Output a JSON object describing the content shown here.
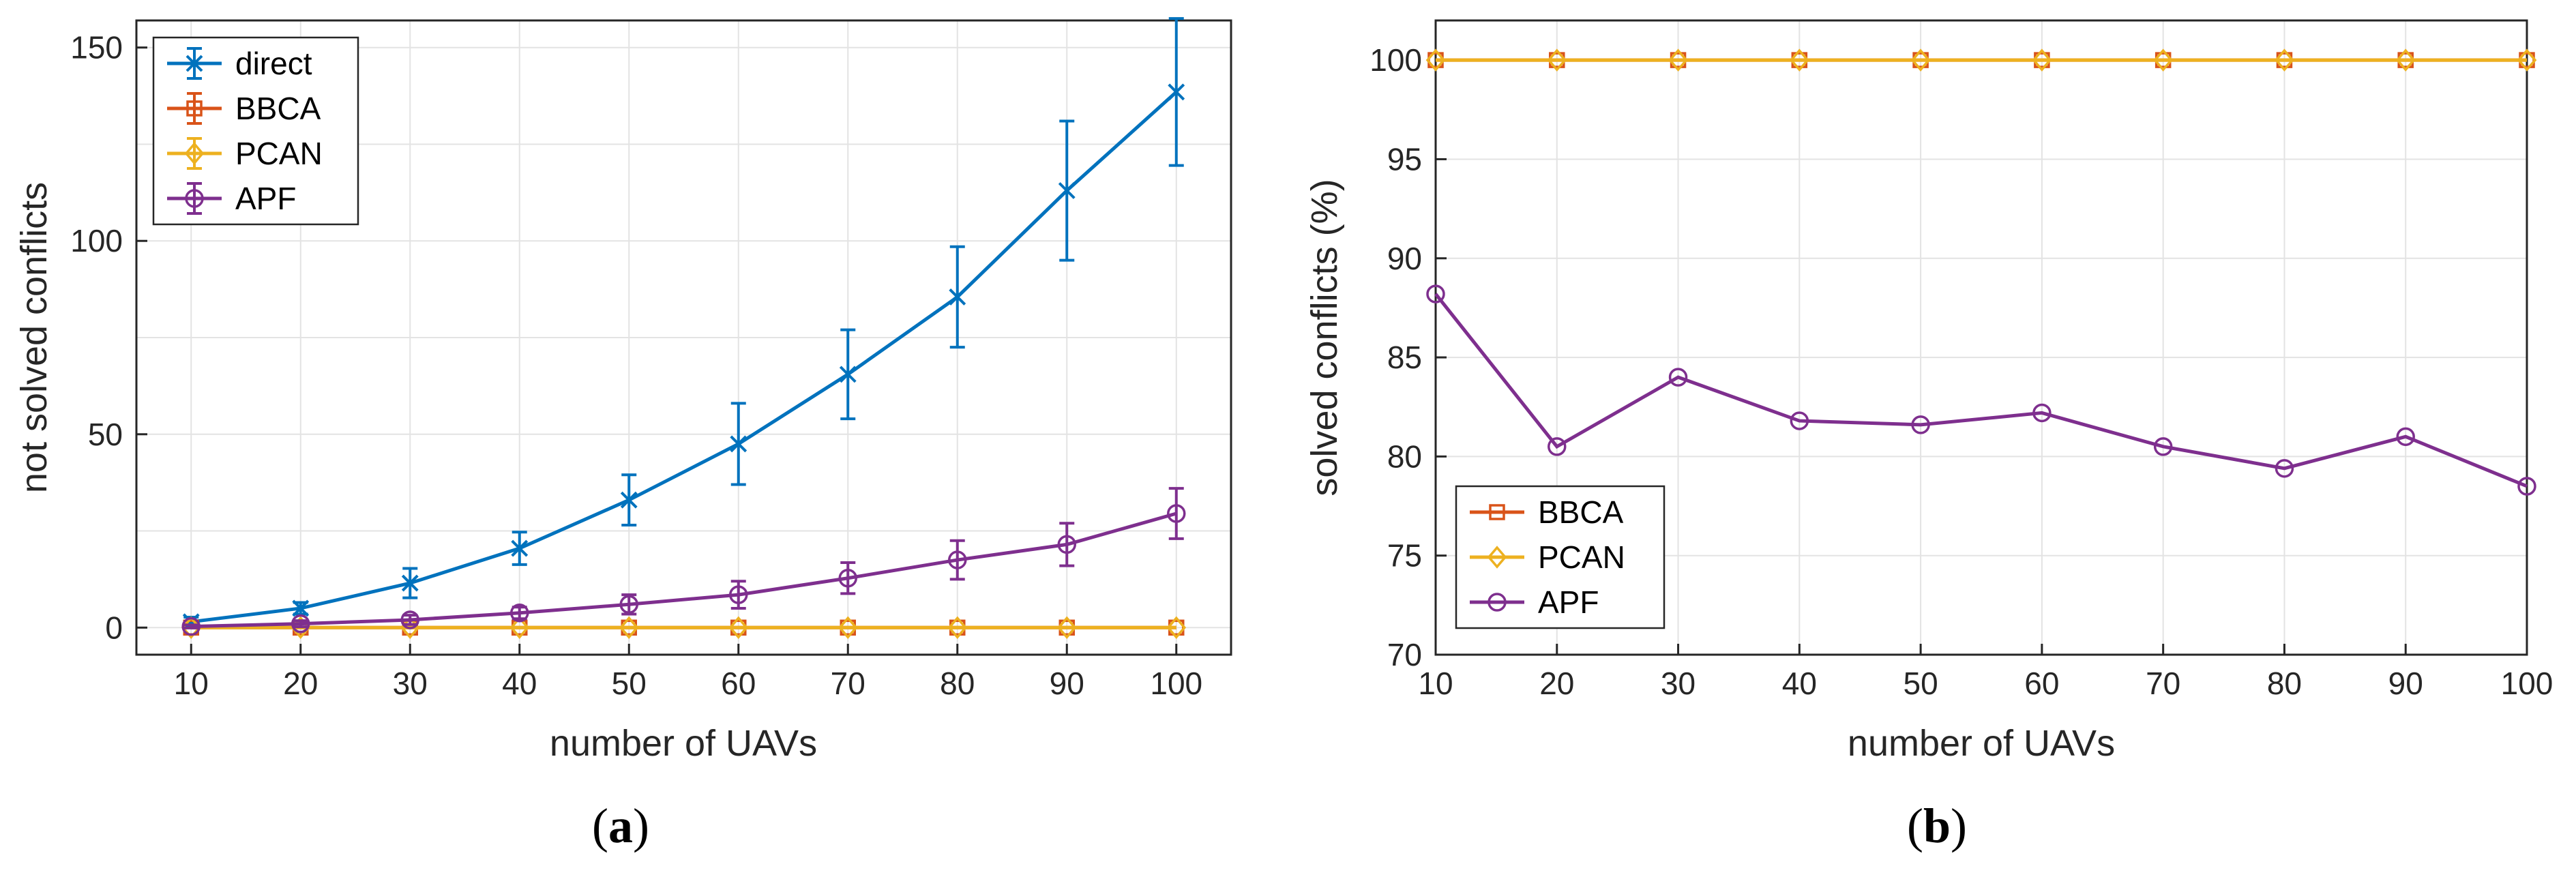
{
  "chart_data": [
    {
      "type": "line",
      "panel_label": "a",
      "xlabel": "number of UAVs",
      "ylabel": "not solved conflicts",
      "x": [
        10,
        20,
        30,
        40,
        50,
        60,
        70,
        80,
        90,
        100
      ],
      "xlim": [
        5,
        105
      ],
      "ylim": [
        -7,
        157
      ],
      "xticks": [
        10,
        20,
        30,
        40,
        50,
        60,
        70,
        80,
        90,
        100
      ],
      "yticks": [
        0,
        50,
        100,
        150
      ],
      "grid": true,
      "legend_position": "top-left",
      "series": [
        {
          "name": "direct",
          "color": "#0072BD",
          "marker": "x",
          "values": [
            1.5,
            5,
            11.5,
            20.5,
            33,
            47.5,
            65.5,
            85.5,
            113,
            138.5
          ],
          "error": [
            1.2,
            1.5,
            3.8,
            4.2,
            6.5,
            10.5,
            11.5,
            13,
            18,
            19
          ]
        },
        {
          "name": "BBCA",
          "color": "#D95319",
          "marker": "square",
          "values": [
            0,
            0,
            0,
            0,
            0,
            0,
            0,
            0,
            0,
            0
          ],
          "error": [
            0,
            0,
            0,
            0,
            0,
            0,
            0,
            0,
            0,
            0
          ]
        },
        {
          "name": "PCAN",
          "color": "#EDB120",
          "marker": "diamond",
          "values": [
            0,
            0,
            0,
            0,
            0,
            0,
            0,
            0,
            0,
            0
          ],
          "error": [
            0,
            0,
            0,
            0,
            0,
            0,
            0,
            0,
            0,
            0
          ]
        },
        {
          "name": "APF",
          "color": "#7E2F8E",
          "marker": "circle",
          "values": [
            0.3,
            1,
            2,
            3.8,
            6,
            8.5,
            12.8,
            17.5,
            21.5,
            29.5
          ],
          "error": [
            0.4,
            0.8,
            1.2,
            1.5,
            2.5,
            3.5,
            4,
            5,
            5.5,
            6.5
          ]
        }
      ]
    },
    {
      "type": "line",
      "panel_label": "b",
      "xlabel": "number of UAVs",
      "ylabel": "solved conflicts (%)",
      "x": [
        10,
        20,
        30,
        40,
        50,
        60,
        70,
        80,
        90,
        100
      ],
      "xlim": [
        10,
        100
      ],
      "ylim": [
        70,
        102
      ],
      "xticks": [
        10,
        20,
        30,
        40,
        50,
        60,
        70,
        80,
        90,
        100
      ],
      "yticks": [
        70,
        75,
        80,
        85,
        90,
        95,
        100
      ],
      "grid": true,
      "legend_position": "bottom-left",
      "series": [
        {
          "name": "BBCA",
          "color": "#D95319",
          "marker": "square",
          "values": [
            100,
            100,
            100,
            100,
            100,
            100,
            100,
            100,
            100,
            100
          ]
        },
        {
          "name": "PCAN",
          "color": "#EDB120",
          "marker": "diamond",
          "values": [
            100,
            100,
            100,
            100,
            100,
            100,
            100,
            100,
            100,
            100
          ]
        },
        {
          "name": "APF",
          "color": "#7E2F8E",
          "marker": "circle",
          "values": [
            88.2,
            80.5,
            84,
            81.8,
            81.6,
            82.2,
            80.5,
            79.4,
            81,
            78.5
          ]
        }
      ]
    }
  ],
  "captions": {
    "left": "a",
    "right": "b"
  }
}
